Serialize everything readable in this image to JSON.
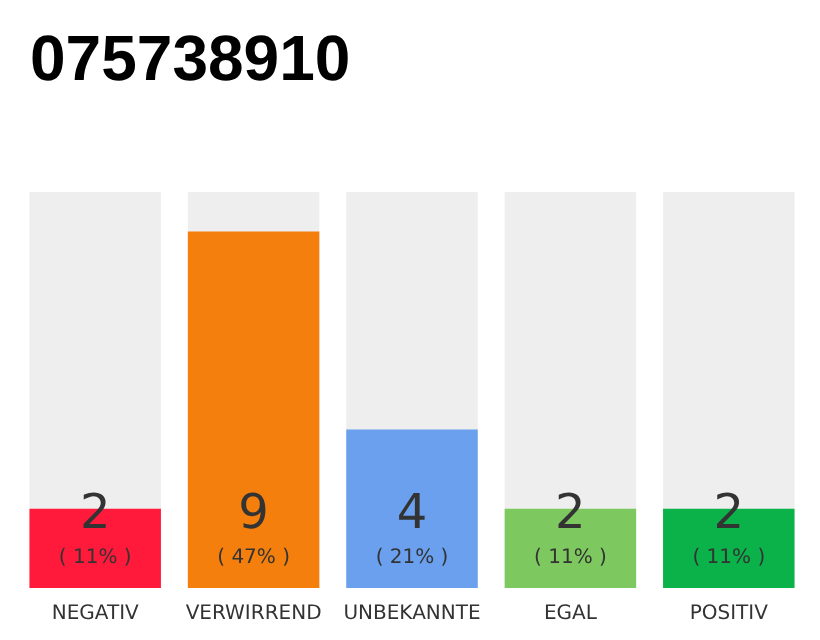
{
  "chart_data": {
    "type": "bar",
    "title": "075738910",
    "categories": [
      "NEGATIV",
      "VERWIRREND",
      "UNBEKANNTE",
      "EGAL",
      "POSITIV"
    ],
    "values": [
      2,
      9,
      4,
      2,
      2
    ],
    "colors": [
      "#ff1a3c",
      "#f47f0c",
      "#6aa0ee",
      "#7ec95f",
      "#0bb24a"
    ],
    "value_labels": [
      "2\n( 11% )",
      "9\n( 47% )",
      "4\n( 21% )",
      "2\n( 11% )",
      "2\n( 11% )"
    ]
  }
}
